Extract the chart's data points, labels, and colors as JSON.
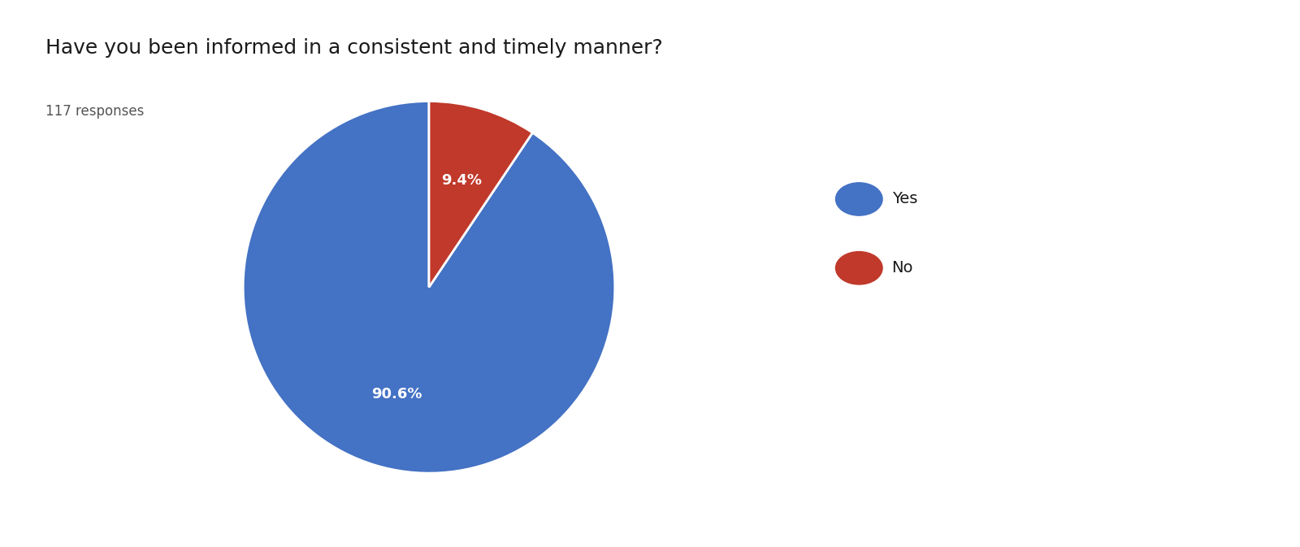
{
  "title": "Have you been informed in a consistent and timely manner?",
  "subtitle": "117 responses",
  "labels": [
    "Yes",
    "No"
  ],
  "values": [
    90.6,
    9.4
  ],
  "colors": [
    "#4472C4",
    "#C0392B"
  ],
  "legend_labels": [
    "Yes",
    "No"
  ],
  "title_fontsize": 18,
  "subtitle_fontsize": 12,
  "autopct_fontsize": 13,
  "legend_fontsize": 14,
  "background_color": "#ffffff",
  "startangle": 90
}
